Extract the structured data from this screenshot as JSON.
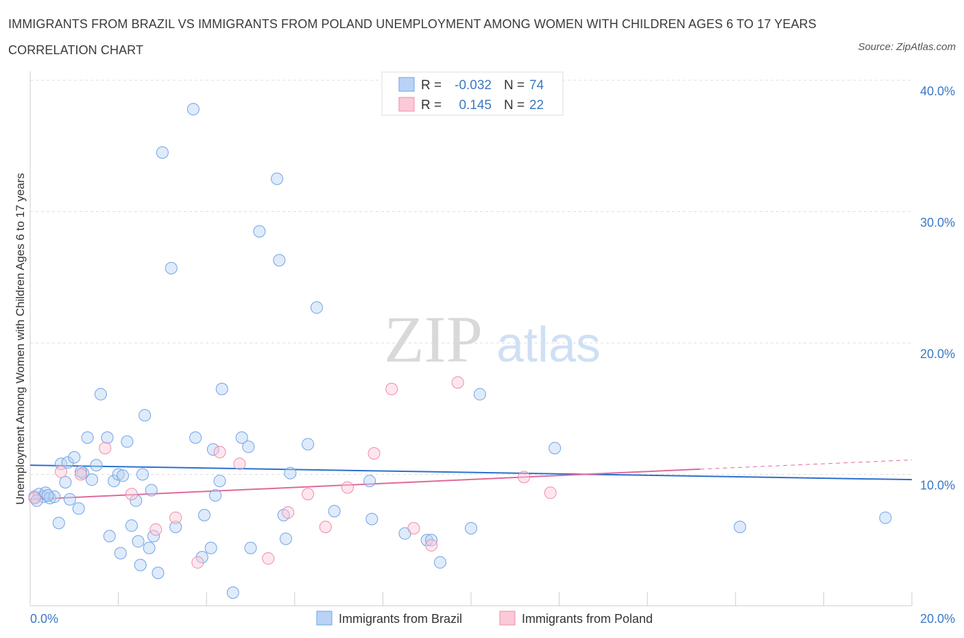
{
  "header": {
    "title": "IMMIGRANTS FROM BRAZIL VS IMMIGRANTS FROM POLAND UNEMPLOYMENT AMONG WOMEN WITH CHILDREN AGES 6 TO 17 YEARS CORRELATION CHART",
    "source": "Source: ZipAtlas.com"
  },
  "watermark": {
    "zip": "ZIP",
    "atlas": "atlas"
  },
  "colors": {
    "brazil": "#6fa3e6",
    "brazil_line": "#2b6fcc",
    "poland": "#f08aab",
    "poland_line": "#e0689a",
    "axis_label": "#3b78c4"
  },
  "chart_data": {
    "type": "scatter",
    "xlabel": "",
    "ylabel": "Unemployment Among Women with Children Ages 6 to 17 years",
    "xlim": [
      0,
      20
    ],
    "ylim": [
      0,
      40
    ],
    "x_tick_labels": [
      "0.0%",
      "20.0%"
    ],
    "y_ticks": [
      10,
      20,
      30,
      40
    ],
    "y_tick_labels": [
      "10.0%",
      "20.0%",
      "30.0%",
      "40.0%"
    ],
    "grid": "horizontal dashed",
    "legend_position": "top-center",
    "stats": [
      {
        "r_label": "R =",
        "r_value": "-0.032",
        "n_label": "N =",
        "n_value": "74"
      },
      {
        "r_label": "R =",
        "r_value": "0.145",
        "n_label": "N =",
        "n_value": "22"
      }
    ],
    "series": [
      {
        "name": "Immigrants from Brazil",
        "color": "#6fa3e6",
        "trend": {
          "x0": 0,
          "y0": 10.7,
          "x1": 20,
          "y1": 9.6
        },
        "points": [
          [
            0.1,
            8.3
          ],
          [
            0.2,
            8.5
          ],
          [
            0.3,
            8.3
          ],
          [
            0.35,
            8.6
          ],
          [
            0.45,
            8.2
          ],
          [
            0.55,
            8.3
          ],
          [
            0.65,
            6.3
          ],
          [
            0.7,
            10.8
          ],
          [
            0.8,
            9.4
          ],
          [
            0.85,
            10.9
          ],
          [
            0.9,
            8.1
          ],
          [
            1.0,
            11.3
          ],
          [
            1.1,
            7.4
          ],
          [
            1.2,
            10.1
          ],
          [
            1.3,
            12.8
          ],
          [
            1.4,
            9.6
          ],
          [
            1.5,
            10.7
          ],
          [
            1.6,
            16.1
          ],
          [
            1.75,
            12.8
          ],
          [
            1.8,
            5.3
          ],
          [
            1.9,
            9.5
          ],
          [
            2.0,
            10.0
          ],
          [
            2.05,
            4.0
          ],
          [
            2.1,
            9.9
          ],
          [
            2.2,
            12.5
          ],
          [
            2.3,
            6.1
          ],
          [
            2.4,
            8.0
          ],
          [
            2.45,
            4.9
          ],
          [
            2.5,
            3.1
          ],
          [
            2.6,
            14.5
          ],
          [
            2.7,
            4.4
          ],
          [
            2.75,
            8.8
          ],
          [
            2.8,
            5.3
          ],
          [
            2.9,
            2.5
          ],
          [
            3.0,
            34.5
          ],
          [
            3.2,
            25.7
          ],
          [
            3.3,
            6.0
          ],
          [
            3.7,
            37.8
          ],
          [
            3.75,
            12.8
          ],
          [
            3.9,
            3.7
          ],
          [
            3.95,
            6.9
          ],
          [
            4.1,
            4.4
          ],
          [
            4.15,
            11.9
          ],
          [
            4.2,
            8.4
          ],
          [
            4.3,
            9.5
          ],
          [
            4.35,
            16.5
          ],
          [
            4.6,
            1.0
          ],
          [
            4.8,
            12.8
          ],
          [
            4.95,
            12.1
          ],
          [
            5.0,
            4.4
          ],
          [
            5.2,
            28.5
          ],
          [
            5.6,
            32.5
          ],
          [
            5.65,
            26.3
          ],
          [
            5.75,
            6.9
          ],
          [
            5.8,
            5.1
          ],
          [
            5.9,
            10.1
          ],
          [
            6.3,
            12.3
          ],
          [
            6.5,
            22.7
          ],
          [
            6.9,
            7.2
          ],
          [
            7.7,
            9.5
          ],
          [
            7.75,
            6.6
          ],
          [
            8.5,
            5.5
          ],
          [
            9.0,
            5.0
          ],
          [
            9.1,
            5.0
          ],
          [
            9.3,
            3.3
          ],
          [
            10.0,
            5.9
          ],
          [
            10.2,
            16.1
          ],
          [
            11.9,
            12.0
          ],
          [
            16.1,
            6.0
          ],
          [
            19.4,
            6.7
          ],
          [
            0.15,
            8.0
          ],
          [
            0.4,
            8.4
          ],
          [
            1.15,
            10.2
          ],
          [
            2.55,
            10.0
          ]
        ]
      },
      {
        "name": "Immigrants from Poland",
        "color": "#f08aab",
        "trend": {
          "x0": 0,
          "y0": 8.1,
          "x1": 15.2,
          "y1": 10.4,
          "dash_x1": 20,
          "dash_y1": 11.1
        },
        "points": [
          [
            0.1,
            8.2
          ],
          [
            0.7,
            10.2
          ],
          [
            1.15,
            10.0
          ],
          [
            1.7,
            12.0
          ],
          [
            2.3,
            8.5
          ],
          [
            2.85,
            5.8
          ],
          [
            3.3,
            6.7
          ],
          [
            3.8,
            3.3
          ],
          [
            4.3,
            11.7
          ],
          [
            4.75,
            10.8
          ],
          [
            5.4,
            3.6
          ],
          [
            5.85,
            7.1
          ],
          [
            6.3,
            8.5
          ],
          [
            6.7,
            6.0
          ],
          [
            7.2,
            9.0
          ],
          [
            7.8,
            11.6
          ],
          [
            8.2,
            16.5
          ],
          [
            8.7,
            5.9
          ],
          [
            9.1,
            4.6
          ],
          [
            9.7,
            17.0
          ],
          [
            11.2,
            9.8
          ],
          [
            11.8,
            8.6
          ]
        ]
      }
    ]
  }
}
